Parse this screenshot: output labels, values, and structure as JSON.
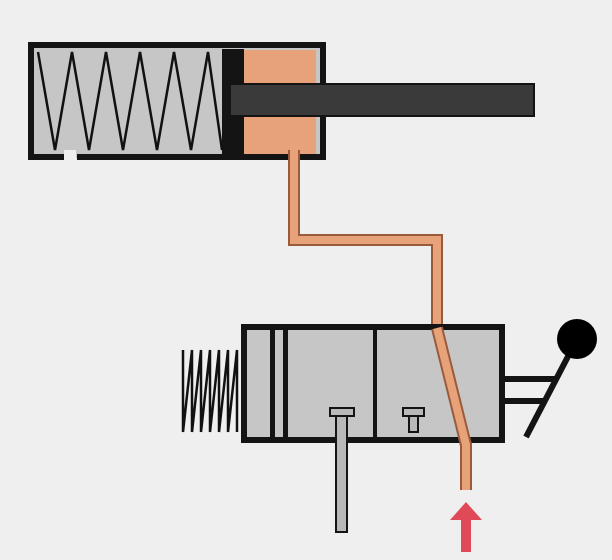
{
  "diagram": {
    "type": "pneumatic-circuit",
    "components": [
      {
        "id": "cylinder",
        "kind": "single-acting spring-return cylinder"
      },
      {
        "id": "valve",
        "kind": "3/2 directional control valve, spring return"
      },
      {
        "id": "actuator",
        "kind": "lever with ball knob"
      },
      {
        "id": "supply",
        "kind": "pressure supply arrow"
      }
    ],
    "colors": {
      "background": "#efefef",
      "body_fill": "#c6c6c6",
      "outline": "#141414",
      "piston": "#e7a27a",
      "air_line": "#e7a27a",
      "air_line_edge": "#9a5a3c",
      "rod": "#3a3a3a",
      "spring": "#111111",
      "exhaust_port": "#b9b9b9",
      "supply_arrow": "#e04a58",
      "knob": "#000000"
    }
  }
}
